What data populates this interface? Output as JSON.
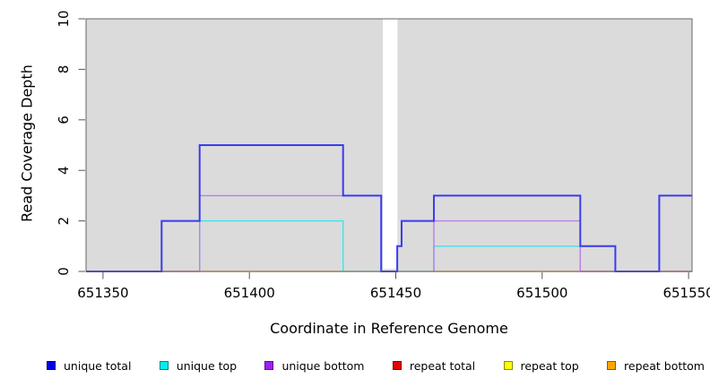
{
  "chart_data": {
    "type": "line",
    "subtype": "step",
    "title": "",
    "xlabel": "Coordinate in Reference Genome",
    "ylabel": "Read Coverage Depth",
    "xlim": [
      651344.2,
      651551.2
    ],
    "ylim": [
      0,
      10
    ],
    "x_ticks": [
      651350,
      651400,
      651450,
      651500,
      651550
    ],
    "y_ticks": [
      0,
      2,
      4,
      6,
      8,
      10
    ],
    "grid": false,
    "plot_bg": "#DBDBDB",
    "legend_position": "bottom",
    "gap_region": {
      "from": 651445.6,
      "to": 651450.6,
      "note": "white masked band, full plot height"
    },
    "series": [
      {
        "name": "unique top",
        "color": "#3FE3EC",
        "width": 1.4,
        "paths": [
          [
            [
              651383,
              0
            ],
            [
              651383,
              2
            ],
            [
              651432,
              2
            ],
            [
              651432,
              0
            ]
          ],
          [
            [
              651463,
              0
            ],
            [
              651463,
              1
            ],
            [
              651513,
              1
            ],
            [
              651513,
              0
            ]
          ]
        ]
      },
      {
        "name": "unique bottom",
        "color": "#BA7FE8",
        "width": 1.4,
        "paths": [
          [
            [
              651383,
              0
            ],
            [
              651383,
              3
            ],
            [
              651445,
              3
            ],
            [
              651445,
              0
            ]
          ],
          [
            [
              651463,
              0
            ],
            [
              651463,
              2
            ],
            [
              651513,
              2
            ],
            [
              651513,
              0
            ]
          ]
        ]
      },
      {
        "name": "unique total",
        "color": "#3B3BF0",
        "width": 2,
        "paths": [
          [
            [
              651344.2,
              0
            ],
            [
              651370,
              0
            ],
            [
              651370,
              2
            ],
            [
              651383,
              2
            ],
            [
              651383,
              5
            ],
            [
              651432,
              5
            ],
            [
              651432,
              3
            ],
            [
              651445,
              3
            ],
            [
              651445,
              0
            ],
            [
              651450.5,
              0
            ],
            [
              651450.5,
              1
            ],
            [
              651452,
              1
            ],
            [
              651452,
              2
            ],
            [
              651463,
              2
            ],
            [
              651463,
              3
            ],
            [
              651513,
              3
            ],
            [
              651513,
              1
            ],
            [
              651525,
              1
            ],
            [
              651525,
              0
            ],
            [
              651540,
              0
            ],
            [
              651540,
              3
            ],
            [
              651551.2,
              3
            ]
          ]
        ]
      }
    ],
    "zero_segments": [
      {
        "from": 651370,
        "to": 651383,
        "color": "#D94F7E",
        "represents": "repeat total / unique bottom overlap at depth 0"
      },
      {
        "from": 651383,
        "to": 651432,
        "color": "#FFA420",
        "represents": "repeat bottom at depth 0"
      },
      {
        "from": 651432,
        "to": 651463,
        "color": "#7ECF8E",
        "represents": "unique top over repeat lines at depth 0"
      },
      {
        "from": 651463,
        "to": 651513,
        "color": "#FFA420",
        "represents": "repeat bottom at depth 0"
      },
      {
        "from": 651513,
        "to": 651551.2,
        "color": "#D94F7E",
        "represents": "repeat total / overlap at depth 0"
      }
    ],
    "legend": [
      {
        "label": "unique total",
        "color": "#0000EE"
      },
      {
        "label": "unique top",
        "color": "#00EEEE"
      },
      {
        "label": "unique bottom",
        "color": "#A020F0"
      },
      {
        "label": "repeat total",
        "color": "#E80000"
      },
      {
        "label": "repeat top",
        "color": "#FFFF00"
      },
      {
        "label": "repeat bottom",
        "color": "#FFA500"
      }
    ]
  }
}
